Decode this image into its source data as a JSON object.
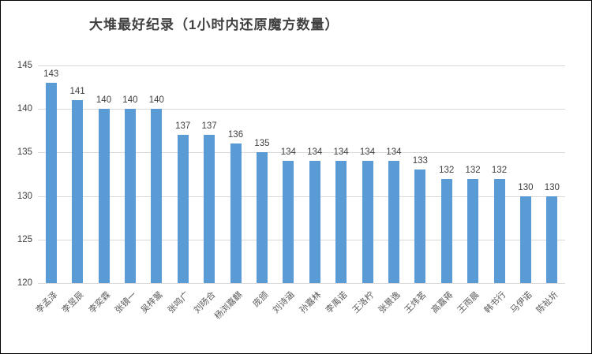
{
  "chart_data": {
    "type": "bar",
    "title": "大堆最好纪录（1小时内还原魔方数量）",
    "categories": [
      "李孟泽",
      "李昱辰",
      "李奕霖",
      "张镜一",
      "吴梓翯",
      "张鸣广",
      "刘旸合",
      "杨浏嘉麒",
      "庞颁",
      "刘诗涵",
      "孙嘉林",
      "李禹诺",
      "王洛柠",
      "张景逸",
      "王炜茗",
      "高嘉蒋",
      "王雨晨",
      "韩书行",
      "马伊诺",
      "陈祉圻"
    ],
    "values": [
      143,
      141,
      140,
      140,
      140,
      137,
      137,
      136,
      135,
      134,
      134,
      134,
      134,
      134,
      133,
      132,
      132,
      132,
      130,
      130
    ],
    "xlabel": "",
    "ylabel": "",
    "ylim": [
      120,
      145
    ],
    "yticks": [
      120,
      125,
      130,
      135,
      140,
      145
    ],
    "grid": "horizontal",
    "legend": "none",
    "data_labels": true,
    "bar_color": "#5b9bd5",
    "gridline_color": "#d9d9d9",
    "text_color": "#404040",
    "xtick_color": "#595959"
  }
}
